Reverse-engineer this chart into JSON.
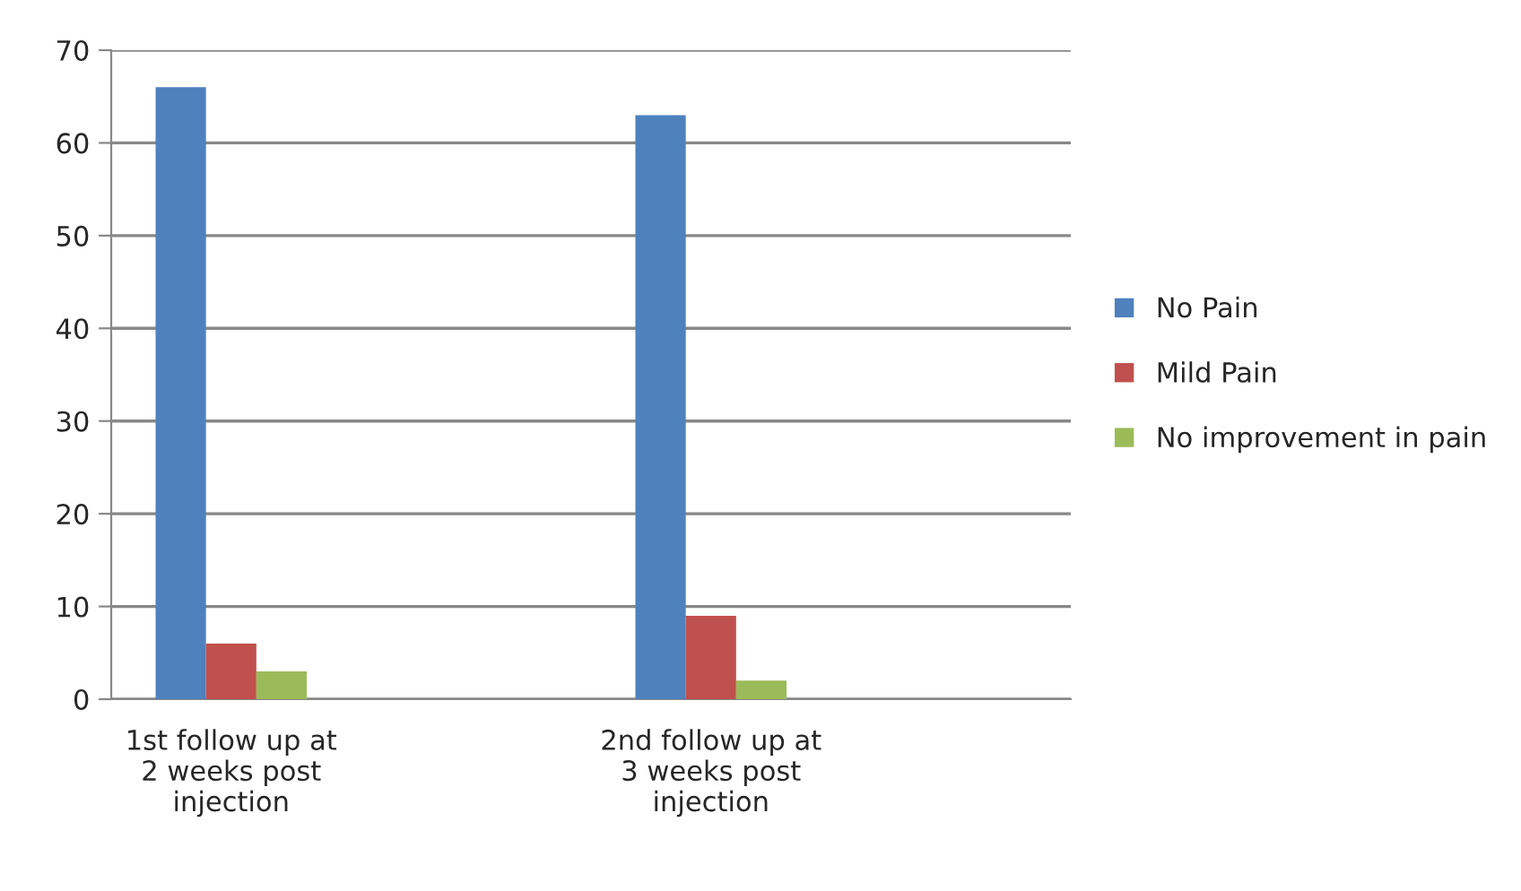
{
  "chart_data": {
    "type": "bar",
    "categories": [
      "1st follow up at\n2 weeks post\ninjection",
      null,
      "2nd follow up at\n3 weeks post\ninjection",
      null
    ],
    "series": [
      {
        "name": "No Pain",
        "color": "#4f81bd",
        "values": [
          66,
          null,
          63,
          null
        ]
      },
      {
        "name": "Mild Pain",
        "color": "#c0504d",
        "values": [
          6,
          null,
          9,
          null
        ]
      },
      {
        "name": "No improvement in pain",
        "color": "#9bbb59",
        "values": [
          3,
          null,
          2,
          null
        ]
      }
    ],
    "ylim": [
      0,
      70
    ],
    "yticks": [
      0,
      10,
      20,
      30,
      40,
      50,
      60,
      70
    ],
    "grid": "y",
    "legend": "right"
  }
}
